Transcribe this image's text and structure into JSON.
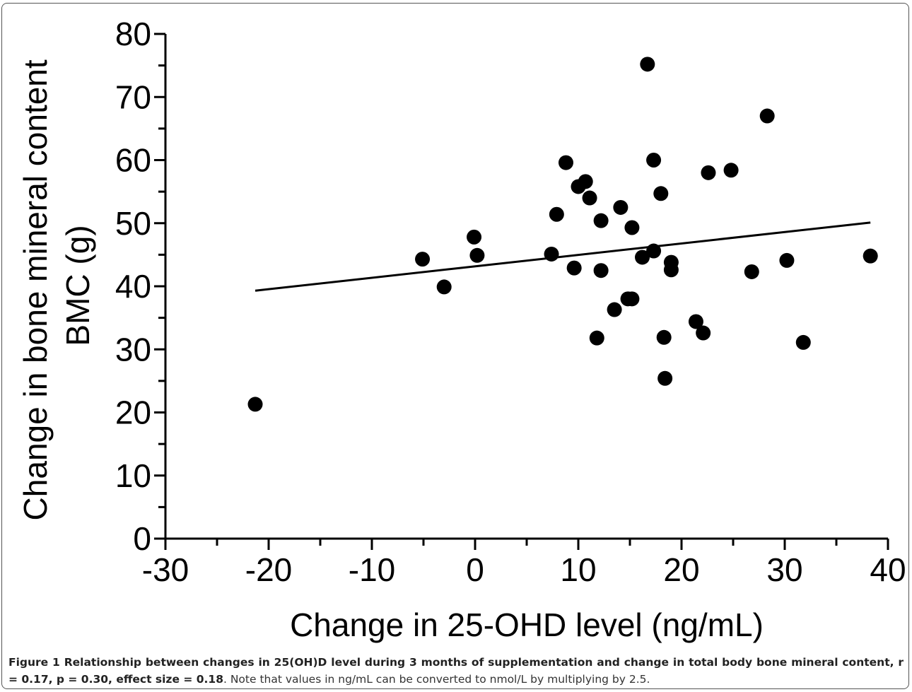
{
  "figure": {
    "caption_label": "Figure 1",
    "caption_bold": "Relationship between changes in 25(OH)D level during 3 months of supplementation and change in total body bone mineral content, r = 0.17, p = 0.30, effect size = 0.18",
    "caption_rest": ". Note that values in ng/mL can be converted to nmol/L by multiplying by 2.5."
  },
  "chart_data": {
    "type": "scatter",
    "title": "",
    "xlabel": "Change in 25-OHD level (ng/mL)",
    "ylabel_lines": [
      "Change in bone mineral content",
      "BMC (g)"
    ],
    "xlim": [
      -30,
      40
    ],
    "ylim": [
      0,
      80
    ],
    "x_ticks": [
      -30,
      -20,
      -10,
      0,
      10,
      20,
      30,
      40
    ],
    "y_ticks": [
      0,
      10,
      20,
      30,
      40,
      50,
      60,
      70,
      80
    ],
    "grid": false,
    "legend": "none",
    "marker_color": "#000000",
    "points": [
      {
        "x": -21.3,
        "y": 21.3
      },
      {
        "x": -5.1,
        "y": 44.3
      },
      {
        "x": -3.0,
        "y": 39.9
      },
      {
        "x": -0.1,
        "y": 47.8
      },
      {
        "x": 0.2,
        "y": 44.9
      },
      {
        "x": 7.4,
        "y": 45.1
      },
      {
        "x": 7.9,
        "y": 51.4
      },
      {
        "x": 8.8,
        "y": 59.6
      },
      {
        "x": 9.6,
        "y": 42.9
      },
      {
        "x": 10.0,
        "y": 55.8
      },
      {
        "x": 10.7,
        "y": 56.6
      },
      {
        "x": 11.1,
        "y": 54.0
      },
      {
        "x": 11.8,
        "y": 31.8
      },
      {
        "x": 12.2,
        "y": 50.4
      },
      {
        "x": 12.2,
        "y": 42.5
      },
      {
        "x": 13.5,
        "y": 36.3
      },
      {
        "x": 14.1,
        "y": 52.5
      },
      {
        "x": 14.8,
        "y": 38.0
      },
      {
        "x": 15.2,
        "y": 38.0
      },
      {
        "x": 15.2,
        "y": 49.3
      },
      {
        "x": 16.2,
        "y": 44.6
      },
      {
        "x": 16.7,
        "y": 75.2
      },
      {
        "x": 17.3,
        "y": 45.6
      },
      {
        "x": 17.3,
        "y": 60.0
      },
      {
        "x": 18.0,
        "y": 54.7
      },
      {
        "x": 18.3,
        "y": 31.9
      },
      {
        "x": 18.4,
        "y": 25.4
      },
      {
        "x": 19.0,
        "y": 43.8
      },
      {
        "x": 19.0,
        "y": 42.6
      },
      {
        "x": 21.4,
        "y": 34.4
      },
      {
        "x": 22.1,
        "y": 32.6
      },
      {
        "x": 22.6,
        "y": 58.0
      },
      {
        "x": 24.8,
        "y": 58.4
      },
      {
        "x": 26.8,
        "y": 42.3
      },
      {
        "x": 28.3,
        "y": 67.0
      },
      {
        "x": 30.2,
        "y": 44.1
      },
      {
        "x": 31.8,
        "y": 31.1
      },
      {
        "x": 38.3,
        "y": 44.8
      }
    ],
    "regression_line": {
      "x_start": -21.3,
      "y_start": 39.3,
      "x_end": 38.3,
      "y_end": 50.1
    }
  }
}
